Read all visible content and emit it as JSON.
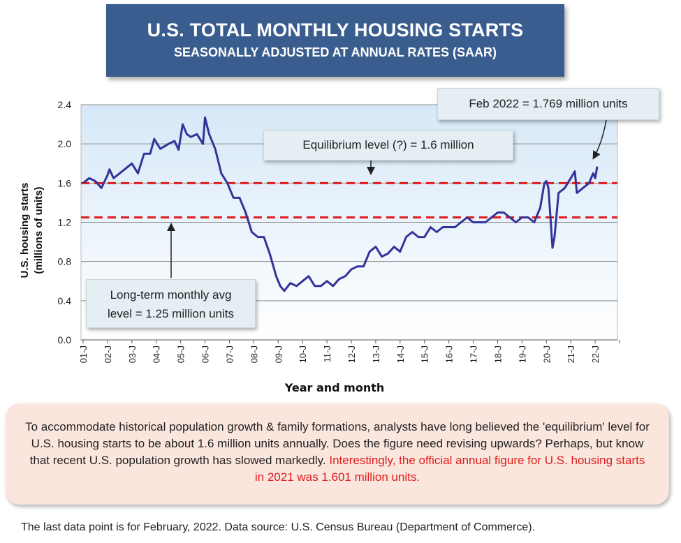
{
  "title": "U.S. TOTAL MONTHLY HOUSING STARTS",
  "subtitle": "SEASONALLY ADJUSTED AT ANNUAL RATES (SAAR)",
  "callouts": {
    "feb": "Feb 2022 = 1.769 million units",
    "equilibrium": "Equilibrium level (?) = 1.6 million",
    "longterm_line1": "Long-term monthly avg",
    "longterm_line2": "level = 1.25 million units"
  },
  "note": {
    "text": "To accommodate historical population growth & family formations, analysts have long believed the 'equilibrium' level for U.S. housing starts to be about 1.6 million units annually. Does the figure need revising upwards? Perhaps, but know that recent U.S. population growth has slowed markedly.",
    "highlight": "Interestingly, the official annual figure for U.S. housing starts in 2021 was 1.601 million units."
  },
  "footer": "The last data point is for February, 2022. Data source: U.S. Census Bureau (Department of Commerce).",
  "colors": {
    "title_bg": "#3a5d8f",
    "series": "#33339a",
    "reference": "#e01b1b",
    "plot_bg_top": "#d6e8f7"
  },
  "chart_data": {
    "type": "line",
    "xlabel": "Year and month",
    "ylabel": "U.S. housing starts (millions of units)",
    "ylim": [
      0,
      2.4
    ],
    "yticks": [
      "0.0",
      "0.4",
      "0.8",
      "1.2",
      "1.6",
      "2.0",
      "2.4"
    ],
    "xticks": [
      "01-J",
      "02-J",
      "03-J",
      "04-J",
      "05-J",
      "06-J",
      "07-J",
      "08-J",
      "09-J",
      "10-J",
      "11-J",
      "12-J",
      "13-J",
      "14-J",
      "15-J",
      "16-J",
      "17-J",
      "18-J",
      "19-J",
      "20-J",
      "21-J",
      "22-J"
    ],
    "grid": "horizontal",
    "reference_lines": [
      {
        "label": "Equilibrium level (?)",
        "value": 1.6
      },
      {
        "label": "Long-term monthly avg level",
        "value": 1.25
      }
    ],
    "series": [
      {
        "x": [
          "2001-01",
          "2001-04",
          "2001-07",
          "2001-10",
          "2002-01",
          "2002-02",
          "2002-04",
          "2002-07",
          "2002-10",
          "2003-01",
          "2003-04",
          "2003-07",
          "2003-10",
          "2003-12",
          "2004-03",
          "2004-07",
          "2004-10",
          "2004-12",
          "2005-02",
          "2005-04",
          "2005-06",
          "2005-09",
          "2005-12",
          "2006-01",
          "2006-03",
          "2006-06",
          "2006-09",
          "2006-12",
          "2007-03",
          "2007-06",
          "2007-09",
          "2007-12",
          "2008-03",
          "2008-06",
          "2008-09",
          "2008-12",
          "2009-02",
          "2009-04",
          "2009-07",
          "2009-10",
          "2010-01",
          "2010-04",
          "2010-07",
          "2010-10",
          "2011-01",
          "2011-04",
          "2011-07",
          "2011-10",
          "2012-01",
          "2012-04",
          "2012-07",
          "2012-10",
          "2013-01",
          "2013-04",
          "2013-07",
          "2013-10",
          "2014-01",
          "2014-04",
          "2014-07",
          "2014-10",
          "2015-01",
          "2015-04",
          "2015-07",
          "2015-10",
          "2016-01",
          "2016-04",
          "2016-07",
          "2016-10",
          "2017-01",
          "2017-04",
          "2017-07",
          "2017-10",
          "2018-01",
          "2018-04",
          "2018-07",
          "2018-10",
          "2019-01",
          "2019-04",
          "2019-07",
          "2019-10",
          "2019-12",
          "2020-01",
          "2020-02",
          "2020-03",
          "2020-04",
          "2020-05",
          "2020-07",
          "2020-10",
          "2021-01",
          "2021-03",
          "2021-04",
          "2021-07",
          "2021-10",
          "2021-12",
          "2022-01",
          "2022-02"
        ],
        "values": [
          1.6,
          1.65,
          1.62,
          1.55,
          1.68,
          1.74,
          1.65,
          1.7,
          1.75,
          1.8,
          1.7,
          1.9,
          1.9,
          2.05,
          1.95,
          2.0,
          2.03,
          1.94,
          2.2,
          2.1,
          2.07,
          2.1,
          2.0,
          2.27,
          2.1,
          1.95,
          1.7,
          1.6,
          1.45,
          1.45,
          1.3,
          1.1,
          1.05,
          1.05,
          0.87,
          0.65,
          0.55,
          0.5,
          0.58,
          0.55,
          0.6,
          0.65,
          0.55,
          0.55,
          0.6,
          0.55,
          0.62,
          0.65,
          0.72,
          0.75,
          0.75,
          0.9,
          0.95,
          0.85,
          0.88,
          0.95,
          0.9,
          1.05,
          1.1,
          1.05,
          1.05,
          1.15,
          1.1,
          1.15,
          1.15,
          1.15,
          1.2,
          1.25,
          1.2,
          1.2,
          1.2,
          1.25,
          1.3,
          1.3,
          1.25,
          1.2,
          1.25,
          1.25,
          1.2,
          1.35,
          1.6,
          1.62,
          1.55,
          1.25,
          0.94,
          1.05,
          1.5,
          1.55,
          1.65,
          1.72,
          1.5,
          1.55,
          1.6,
          1.7,
          1.65,
          1.769
        ]
      }
    ]
  }
}
